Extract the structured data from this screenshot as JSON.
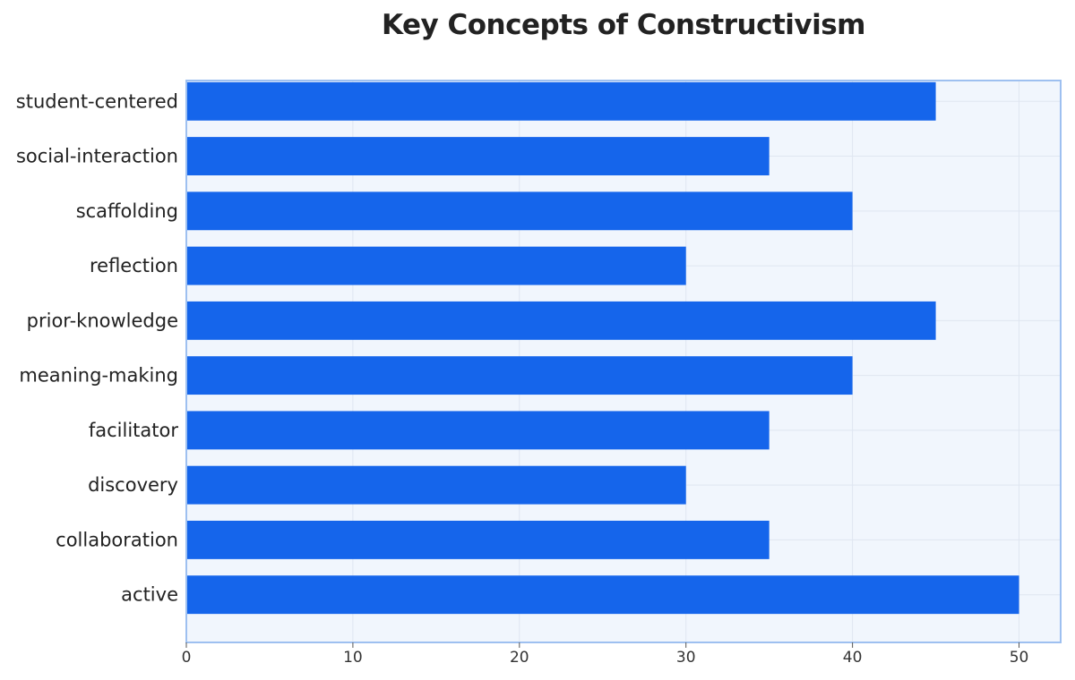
{
  "chart_data": {
    "type": "bar",
    "orientation": "horizontal",
    "title": "Key Concepts of Constructivism",
    "xlabel": "",
    "ylabel": "",
    "categories": [
      "active",
      "collaboration",
      "discovery",
      "facilitator",
      "meaning-making",
      "prior-knowledge",
      "reflection",
      "scaffolding",
      "social-interaction",
      "student-centered"
    ],
    "values": [
      50,
      35,
      30,
      35,
      40,
      45,
      30,
      40,
      35,
      45
    ],
    "xlim": [
      0,
      52.5
    ],
    "xticks": [
      0,
      10,
      20,
      30,
      40,
      50
    ],
    "grid": true,
    "legend": "none"
  },
  "colors": {
    "bar": "#1565eb",
    "plot_background": "#f1f6fd",
    "plot_border": "#9ec0f0",
    "grid": "#dfe6f1"
  }
}
